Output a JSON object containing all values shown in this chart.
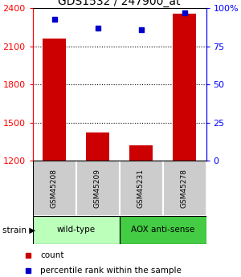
{
  "title": "GDS1532 / 247900_at",
  "samples": [
    "GSM45208",
    "GSM45209",
    "GSM45231",
    "GSM45278"
  ],
  "counts": [
    2160,
    1420,
    1320,
    2360
  ],
  "percentiles": [
    93,
    87,
    86,
    97
  ],
  "ylim_left": [
    1200,
    2400
  ],
  "ylim_right": [
    0,
    100
  ],
  "yticks_left": [
    1200,
    1500,
    1800,
    2100,
    2400
  ],
  "yticks_right": [
    0,
    25,
    50,
    75,
    100
  ],
  "bar_color": "#cc0000",
  "dot_color": "#0000cc",
  "bar_width": 0.55,
  "sample_box_color": "#cccccc",
  "wild_type_color": "#bbffbb",
  "aox_color": "#44cc44",
  "legend_count_label": "count",
  "legend_percentile_label": "percentile rank within the sample"
}
